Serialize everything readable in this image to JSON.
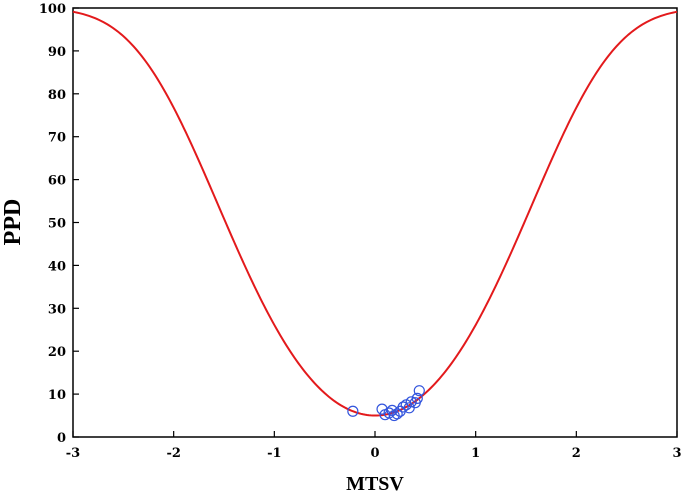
{
  "chart_data": {
    "type": "scatter",
    "xlabel": "MTSV",
    "ylabel": "PPD",
    "xlim": [
      -3,
      3
    ],
    "ylim": [
      0,
      100
    ],
    "x_ticks": [
      "-3",
      "-2",
      "-1",
      "0",
      "1",
      "2",
      "3"
    ],
    "y_ticks": [
      "0",
      "10",
      "20",
      "30",
      "40",
      "50",
      "60",
      "70",
      "80",
      "90",
      "100"
    ],
    "grid": false,
    "legend": "none",
    "series": [
      {
        "kind": "curve",
        "formula": "PPD = 100 - 95*exp(-0.03353*MTSV^4 - 0.2179*MTSV^2)",
        "color": "#e31a1c"
      },
      {
        "kind": "points",
        "color": "#3355dd",
        "points": [
          {
            "x": -0.22,
            "y": 6.0
          },
          {
            "x": 0.07,
            "y": 6.5
          },
          {
            "x": 0.1,
            "y": 5.2
          },
          {
            "x": 0.14,
            "y": 5.6
          },
          {
            "x": 0.17,
            "y": 6.2
          },
          {
            "x": 0.19,
            "y": 5.0
          },
          {
            "x": 0.22,
            "y": 5.4
          },
          {
            "x": 0.25,
            "y": 6.0
          },
          {
            "x": 0.28,
            "y": 7.0
          },
          {
            "x": 0.31,
            "y": 7.5
          },
          {
            "x": 0.34,
            "y": 6.8
          },
          {
            "x": 0.36,
            "y": 8.2
          },
          {
            "x": 0.4,
            "y": 8.0
          },
          {
            "x": 0.42,
            "y": 9.0
          },
          {
            "x": 0.44,
            "y": 10.8
          }
        ]
      }
    ]
  }
}
